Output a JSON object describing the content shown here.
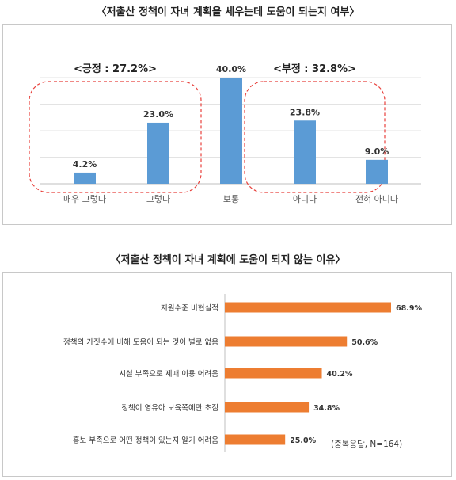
{
  "chart_data": [
    {
      "type": "bar",
      "title": "〈저출산 정책이 자녀 계획을 세우는데 도움이 되는지 여부〉",
      "categories": [
        "매우 그렇다",
        "그렇다",
        "보통",
        "아니다",
        "전혀 아니다"
      ],
      "values": [
        4.2,
        23.0,
        40.0,
        23.8,
        9.0
      ],
      "value_labels": [
        "4.2%",
        "23.0%",
        "40.0%",
        "23.8%",
        "9.0%"
      ],
      "ylim": [
        0,
        40
      ],
      "grid": true,
      "bar_color": "#5b9bd5",
      "groups": [
        {
          "label": "<긍정 : 27.2%>",
          "members": [
            "매우 그렇다",
            "그렇다"
          ]
        },
        {
          "label": "<부정 : 32.8%>",
          "members": [
            "아니다",
            "전혀 아니다"
          ]
        }
      ],
      "group_outline_color": "#e8413c"
    },
    {
      "type": "bar",
      "orientation": "horizontal",
      "title": "〈저출산 정책이 자녀 계획에 도움이 되지 않는 이유〉",
      "categories": [
        "지원수준 비현실적",
        "정책의 가짓수에 비해 도움이 되는 것이 별로 없음",
        "시설 부족으로 제때 이용 어려움",
        "정책이 영유아 보육쪽에만 초점",
        "홍보 부족으로 어떤 정책이 있는지 알기 어려움"
      ],
      "values": [
        68.9,
        50.6,
        40.2,
        34.8,
        25.0
      ],
      "value_labels": [
        "68.9%",
        "50.6%",
        "40.2%",
        "34.8%",
        "25.0%"
      ],
      "xlim": [
        0,
        68.9
      ],
      "bar_color": "#ed7d31",
      "annotation": "(중복응답, N=164)"
    }
  ]
}
